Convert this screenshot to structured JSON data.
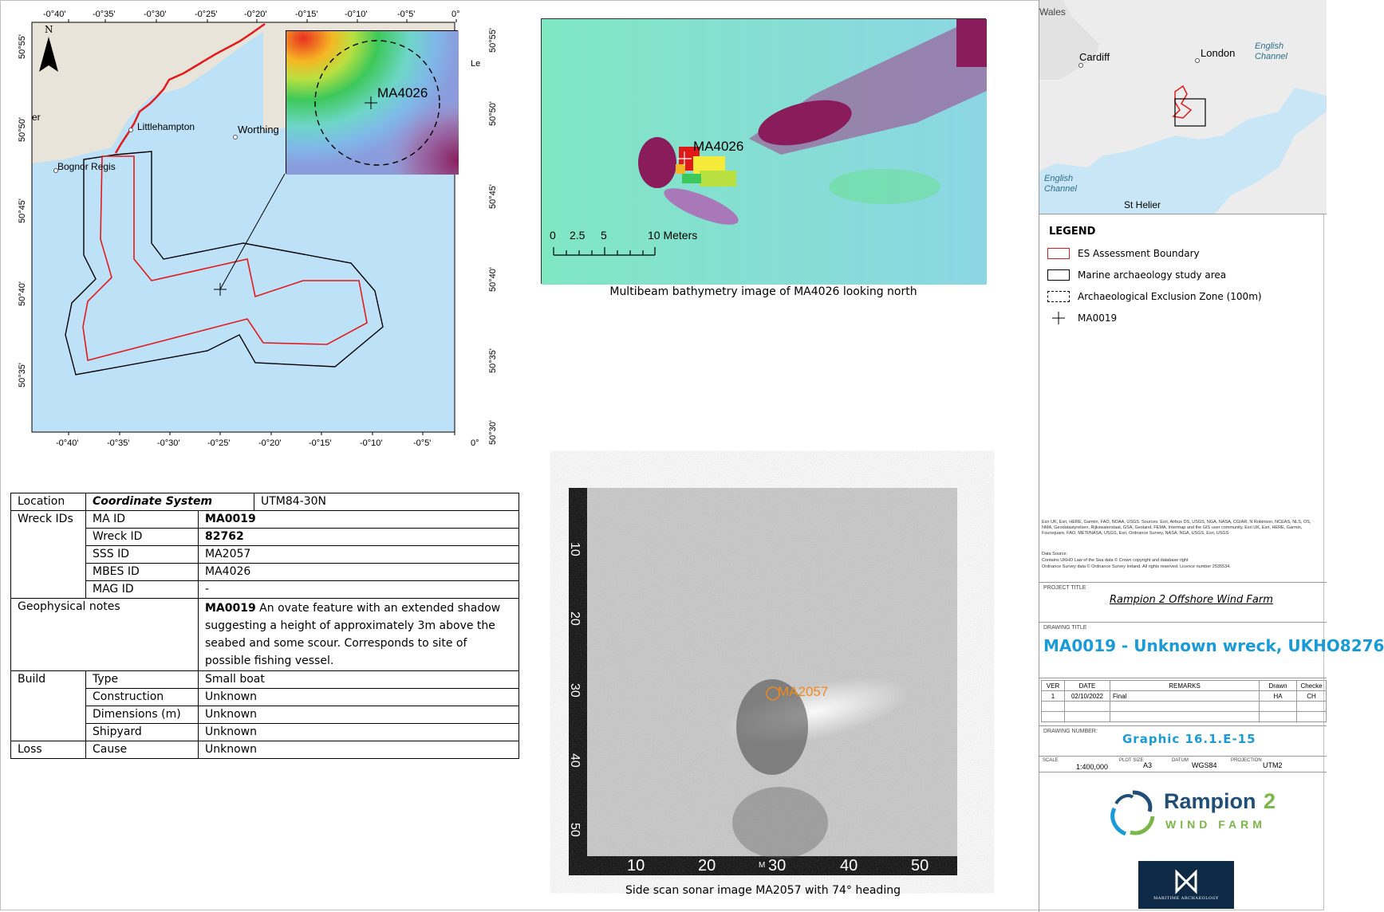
{
  "main_map": {
    "lon_ticks": [
      "-0°40'",
      "-0°35'",
      "-0°30'",
      "-0°25'",
      "-0°20'",
      "-0°15'",
      "-0°10'",
      "-0°5'",
      "0°"
    ],
    "lat_ticks": [
      "50°55'",
      "50°50'",
      "50°45'",
      "50°40'",
      "50°35'",
      "50°30'"
    ],
    "places": [
      "Littlehampton",
      "Worthing",
      "Bognor Regis",
      "er",
      "Le"
    ],
    "north_label": "N",
    "colors": {
      "sea": "#bde1f6",
      "land": "#e8e4d9",
      "boundary": "#e31a1c",
      "study_area": "#000000"
    }
  },
  "inset_map": {
    "label": "MA4026"
  },
  "mbes": {
    "label": "MA4026",
    "scale_labels": [
      "0",
      "2.5",
      "5",
      "10 Meters"
    ],
    "caption": "Multibeam bathymetry image of MA4026 looking north"
  },
  "sss": {
    "label": "MA2057",
    "y_ticks": [
      "10",
      "20",
      "30",
      "40",
      "50"
    ],
    "x_ticks": [
      "10",
      "20",
      "30",
      "40",
      "50"
    ],
    "x_mid_label": "M",
    "caption": "Side scan sonar image MA2057 with 74° heading"
  },
  "table": {
    "location_label": "Location",
    "coord_label": "Coordinate System",
    "coord_value": "UTM84-30N",
    "wreck_ids_label": "Wreck IDs",
    "ids": [
      {
        "k": "MA ID",
        "v": "MA0019",
        "bold": true
      },
      {
        "k": "Wreck ID",
        "v": "82762",
        "bold": true
      },
      {
        "k": "SSS ID",
        "v": "MA2057",
        "bold": false
      },
      {
        "k": "MBES ID",
        "v": "MA4026",
        "bold": false
      },
      {
        "k": "MAG ID",
        "v": "-",
        "bold": false
      }
    ],
    "geo_label": "Geophysical notes",
    "geo_bold": "MA0019",
    "geo_text": " An ovate feature with an extended shadow suggesting a height of approximately 3m above the seabed and some scour. Corresponds to site of possible fishing vessel.",
    "build_label": "Build",
    "build": [
      {
        "k": "Type",
        "v": "Small boat"
      },
      {
        "k": "Construction",
        "v": "Unknown"
      },
      {
        "k": "Dimensions (m)",
        "v": "Unknown"
      },
      {
        "k": "Shipyard",
        "v": "Unknown"
      }
    ],
    "loss_label": "Loss",
    "loss": {
      "k": "Cause",
      "v": "Unknown"
    }
  },
  "overview": {
    "places": [
      "Wales",
      "Cardiff",
      "London",
      "English Channel",
      "English Channel",
      "St Helier"
    ]
  },
  "legend": {
    "title": "LEGEND",
    "items": [
      {
        "label": "ES Assessment Boundary",
        "symbol": "red-box"
      },
      {
        "label": "Marine archaeology study area",
        "symbol": "black-box"
      },
      {
        "label": "Archaeological Exclusion Zone (100m)",
        "symbol": "dashed-box"
      },
      {
        "label": "MA0019",
        "symbol": "cross"
      }
    ]
  },
  "credits": {
    "text1": "Esri UK, Esri, HERE, Garmin, FAO, NOAA, USGS. Sources: Esri, Airbus DS, USGS, NGA, NASA, CGIAR, N Robinson, NCEAS, NLS, OS, NMA, Geodatastyrelsen, Rijkswaterstaat, GSA, Geoland, FEMA, Intermap and the GIS user community, Esri UK, Esri, HERE, Garmin, Foursquare, FAO, METI/NASA, USGS, Esri, Ordnance Survey, NASA, NGA, USGS, Esri, USGS",
    "text2": "Data Source:",
    "text3": "Contains UKHO Law of the Sea data © Crown copyright and database right",
    "text4": "Ordnance Survey data © Ordnance Survey Ireland. All rights reserved. Licence number 2535534."
  },
  "title_block": {
    "project_title_label": "PROJECT TITLE",
    "project_title": "Rampion 2 Offshore Wind Farm",
    "drawing_title_label": "DRAWING TITLE",
    "drawing_title": "MA0019 - Unknown wreck, UKHO8276",
    "rev_headers": [
      "VER",
      "DATE",
      "REMARKS",
      "Drawn",
      "Checke"
    ],
    "rev_row": [
      "1",
      "02/10/2022",
      "Final",
      "HA",
      "CH"
    ],
    "drawing_number_label": "DRAWING NUMBER:",
    "drawing_number": "Graphic 16.1.E-15",
    "scale_label": "SCALE",
    "scale": "1:400,000",
    "plot_size_label": "PLOT SIZE",
    "plot_size": "A3",
    "datum_label": "DATUM",
    "datum": "WGS84",
    "projection_label": "PROJECTION",
    "projection": "UTM2",
    "logo_main": "Rampion",
    "logo_num": "2",
    "logo_sub": "WIND FARM",
    "maritime_text": "MARITIME ARCHAEOLOGY",
    "colors": {
      "title_blue": "#1a9bd7",
      "logo_blue": "#1f4e79",
      "logo_green": "#7ab648",
      "maritime_bg": "#0f2a47"
    }
  }
}
